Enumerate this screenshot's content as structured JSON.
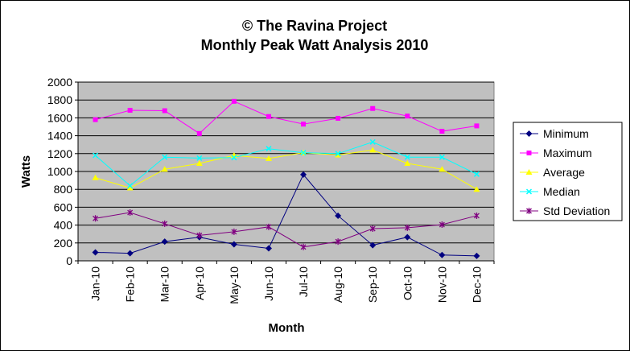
{
  "chart_data": {
    "type": "line",
    "title": "© The Ravina Project",
    "subtitle": "Monthly Peak Watt Analysis 2010",
    "xlabel": "Month",
    "ylabel": "Watts",
    "ylim": [
      0,
      2000
    ],
    "yticks": [
      0,
      200,
      400,
      600,
      800,
      1000,
      1200,
      1400,
      1600,
      1800,
      2000
    ],
    "grid": true,
    "legend_position": "right",
    "plot_background": "#c0c0c0",
    "categories": [
      "Jan-10",
      "Feb-10",
      "Mar-10",
      "Apr-10",
      "May-10",
      "Jun-10",
      "Jul-10",
      "Aug-10",
      "Sep-10",
      "Oct-10",
      "Nov-10",
      "Dec-10"
    ],
    "series": [
      {
        "name": "Minimum",
        "color": "#000080",
        "marker": "diamond",
        "values": [
          95,
          85,
          215,
          265,
          185,
          140,
          965,
          505,
          175,
          265,
          65,
          55
        ]
      },
      {
        "name": "Maximum",
        "color": "#ff00ff",
        "marker": "square",
        "values": [
          1580,
          1685,
          1680,
          1425,
          1785,
          1615,
          1530,
          1595,
          1705,
          1620,
          1450,
          1510
        ]
      },
      {
        "name": "Average",
        "color": "#ffff00",
        "marker": "triangle",
        "values": [
          930,
          815,
          1025,
          1090,
          1180,
          1145,
          1210,
          1185,
          1240,
          1090,
          1025,
          800
        ]
      },
      {
        "name": "Median",
        "color": "#00ffff",
        "marker": "x",
        "values": [
          1180,
          840,
          1160,
          1150,
          1155,
          1255,
          1210,
          1200,
          1330,
          1160,
          1160,
          970
        ]
      },
      {
        "name": "Std Deviation",
        "color": "#800080",
        "marker": "star",
        "values": [
          475,
          540,
          415,
          285,
          325,
          380,
          155,
          215,
          360,
          370,
          405,
          505
        ]
      }
    ]
  }
}
